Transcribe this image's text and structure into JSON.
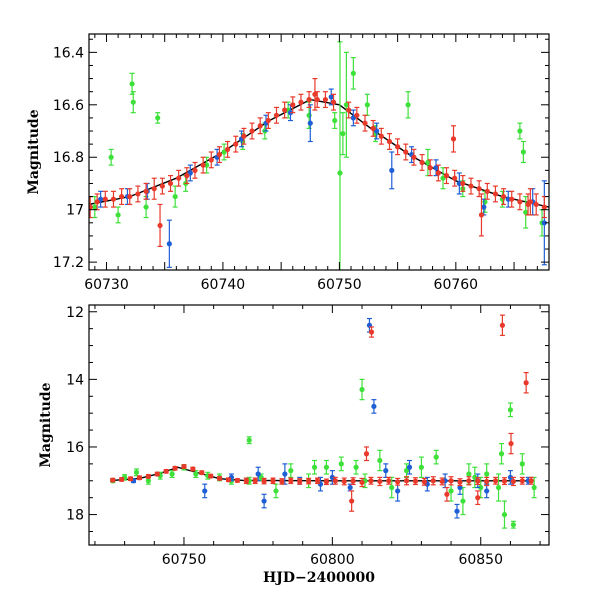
{
  "chart_data": [
    {
      "type": "scatter",
      "panel": "top",
      "xlabel": "",
      "ylabel": "Magnitude",
      "xlim": [
        60728.5,
        60768
      ],
      "ylim": [
        17.23,
        16.33
      ],
      "y_inverted": true,
      "xticks": [
        60730,
        60740,
        60750,
        60760
      ],
      "yticks": [
        16.4,
        16.6,
        16.8,
        17,
        17.2
      ],
      "ytick_labels": [
        "16.4",
        "16.6",
        "16.8",
        "17",
        "17.2"
      ],
      "grid": false,
      "model_curve": {
        "color": "#000000",
        "x": [
          60728.5,
          60732,
          60736,
          60740,
          60744,
          60747.5,
          60750,
          60753,
          60756,
          60760,
          60764,
          60768
        ],
        "y": [
          16.98,
          16.95,
          16.88,
          16.78,
          16.66,
          16.58,
          16.6,
          16.7,
          16.79,
          16.89,
          16.95,
          16.99
        ]
      },
      "series": [
        {
          "color": "#e8392b",
          "x": [
            60728.6,
            60729.2,
            60729.9,
            60730.6,
            60731.3,
            60732,
            60732.7,
            60733.4,
            60734.1,
            60734.8,
            60735.5,
            60736.2,
            60736.9,
            60737.6,
            60738.3,
            60739,
            60739.7,
            60740.4,
            60741.1,
            60741.8,
            60742.5,
            60743.2,
            60743.9,
            60744.6,
            60745.3,
            60746,
            60746.7,
            60747.4,
            60748.1,
            60748.8,
            60749.5,
            60750.8,
            60751.5,
            60752.2,
            60752.9,
            60753.6,
            60754.3,
            60755,
            60755.7,
            60756.4,
            60757.1,
            60757.8,
            60758.5,
            60759.2,
            60759.9,
            60760.6,
            60761.3,
            60762,
            60762.7,
            60763.4,
            60764.1,
            60764.8,
            60765.5,
            60766.2,
            60766.9,
            60767.6,
            60734.6,
            60747.9,
            60759.8,
            60762.2,
            60766.4
          ],
          "y": [
            16.99,
            16.97,
            16.96,
            16.96,
            16.95,
            16.95,
            16.94,
            16.93,
            16.92,
            16.91,
            16.9,
            16.88,
            16.87,
            16.85,
            16.83,
            16.81,
            16.79,
            16.77,
            16.75,
            16.72,
            16.7,
            16.68,
            16.66,
            16.64,
            16.62,
            16.6,
            16.59,
            16.58,
            16.58,
            16.58,
            16.59,
            16.62,
            16.64,
            16.67,
            16.69,
            16.72,
            16.74,
            16.76,
            16.78,
            16.8,
            16.82,
            16.84,
            16.86,
            16.87,
            16.88,
            16.9,
            16.91,
            16.92,
            16.93,
            16.94,
            16.95,
            16.96,
            16.97,
            16.98,
            16.98,
            16.99,
            17.06,
            16.56,
            16.73,
            17.02,
            16.97
          ],
          "yerr": [
            0.04,
            0.03,
            0.03,
            0.03,
            0.03,
            0.03,
            0.03,
            0.03,
            0.04,
            0.03,
            0.03,
            0.03,
            0.03,
            0.03,
            0.03,
            0.03,
            0.03,
            0.03,
            0.03,
            0.03,
            0.03,
            0.03,
            0.03,
            0.03,
            0.03,
            0.03,
            0.03,
            0.03,
            0.03,
            0.03,
            0.03,
            0.03,
            0.03,
            0.03,
            0.03,
            0.03,
            0.03,
            0.03,
            0.03,
            0.03,
            0.03,
            0.03,
            0.03,
            0.03,
            0.03,
            0.03,
            0.03,
            0.03,
            0.03,
            0.03,
            0.03,
            0.03,
            0.03,
            0.04,
            0.04,
            0.04,
            0.08,
            0.06,
            0.05,
            0.08,
            0.05
          ]
        },
        {
          "color": "#1f5fd6",
          "x": [
            60729.5,
            60731.8,
            60733.5,
            60735.4,
            60737.2,
            60739.5,
            60741.6,
            60743.7,
            60745.8,
            60747.5,
            60749.3,
            60751.2,
            60753.2,
            60754.5,
            60756.2,
            60758.3,
            60760.3,
            60762.4,
            60764.5,
            60766.6,
            60767.6
          ],
          "y": [
            16.96,
            16.95,
            16.93,
            17.13,
            16.86,
            16.8,
            16.73,
            16.67,
            16.63,
            16.67,
            16.57,
            16.65,
            16.7,
            16.85,
            16.79,
            16.84,
            16.9,
            16.99,
            16.96,
            16.97,
            17.05
          ],
          "yerr": [
            0.03,
            0.03,
            0.03,
            0.09,
            0.03,
            0.03,
            0.03,
            0.03,
            0.03,
            0.07,
            0.03,
            0.03,
            0.03,
            0.07,
            0.03,
            0.03,
            0.04,
            0.03,
            0.03,
            0.05,
            0.16
          ]
        },
        {
          "color": "#3ee03a",
          "x": [
            60729.0,
            60730.4,
            60731.0,
            60732.2,
            60732.3,
            60733.4,
            60734.4,
            60735.9,
            60736.8,
            60738.6,
            60740.1,
            60741.7,
            60743.6,
            60745.6,
            60747.4,
            60749.6,
            60750.05,
            60750.3,
            60750.6,
            60751.2,
            60752.4,
            60753.1,
            60755.9,
            60757.6,
            60758.9,
            60760.6,
            60762.5,
            60764.0,
            60765.5,
            60765.8,
            60766.0,
            60767.4
          ],
          "y": [
            16.99,
            16.8,
            17.02,
            16.52,
            16.59,
            16.99,
            16.65,
            16.95,
            16.9,
            16.83,
            16.78,
            16.74,
            16.7,
            16.62,
            16.64,
            16.66,
            16.86,
            16.71,
            16.6,
            16.48,
            16.6,
            16.71,
            16.6,
            16.82,
            16.88,
            16.92,
            16.97,
            16.96,
            16.7,
            16.78,
            17.01,
            17.05
          ],
          "yerr": [
            0.04,
            0.03,
            0.03,
            0.04,
            0.04,
            0.04,
            0.02,
            0.04,
            0.03,
            0.03,
            0.03,
            0.03,
            0.03,
            0.03,
            0.05,
            0.03,
            0.5,
            0.08,
            0.2,
            0.06,
            0.04,
            0.03,
            0.05,
            0.05,
            0.04,
            0.03,
            0.04,
            0.03,
            0.03,
            0.04,
            0.06,
            0.05
          ]
        }
      ]
    },
    {
      "type": "scatter",
      "panel": "bottom",
      "xlabel": "HJD−2400000",
      "ylabel": "Magnitude",
      "xlim": [
        60718,
        60873
      ],
      "ylim": [
        18.9,
        11.8
      ],
      "y_inverted": true,
      "xticks": [
        60750,
        60800,
        60850
      ],
      "yticks": [
        12,
        14,
        16,
        18
      ],
      "ytick_labels": [
        "12",
        "14",
        "16",
        "18"
      ],
      "grid": false,
      "model_curve": {
        "color": "#000000",
        "x": [
          60726,
          60735,
          60742,
          60748,
          60755,
          60762,
          60770,
          60800,
          60868
        ],
        "y": [
          16.99,
          16.93,
          16.78,
          16.6,
          16.77,
          16.94,
          16.99,
          17.0,
          17.0
        ]
      },
      "series": [
        {
          "color": "#e8392b",
          "x": [
            60726,
            60729,
            60732,
            60735,
            60738,
            60741,
            60744,
            60747,
            60750,
            60753,
            60756,
            60759,
            60762,
            60765,
            60768,
            60771,
            60774,
            60777,
            60780,
            60783,
            60786,
            60789,
            60792,
            60795,
            60798,
            60801,
            60804,
            60807,
            60810,
            60813,
            60816,
            60819,
            60822,
            60825,
            60828,
            60831,
            60834,
            60837,
            60840,
            60843,
            60846,
            60849,
            60852,
            60855,
            60858,
            60861,
            60864,
            60867,
            60813.2,
            60857.3,
            60865.3,
            60811.5,
            60860.2,
            60806.5,
            60838.6,
            60849.0
          ],
          "y": [
            16.98,
            16.96,
            16.94,
            16.91,
            16.87,
            16.8,
            16.72,
            16.63,
            16.58,
            16.65,
            16.76,
            16.86,
            16.93,
            16.97,
            16.99,
            17.0,
            17.0,
            17.01,
            17.0,
            17.02,
            17.0,
            17.02,
            17.01,
            17.0,
            17.03,
            17.0,
            17.02,
            17.01,
            17.05,
            17.0,
            17.02,
            17.0,
            17.03,
            17.0,
            17.01,
            17.03,
            17.0,
            17.02,
            17.0,
            17.04,
            17.0,
            17.01,
            17.02,
            17.0,
            17.01,
            17.02,
            17.0,
            17.0,
            12.6,
            12.4,
            14.1,
            16.2,
            15.9,
            17.6,
            17.4,
            17.5
          ],
          "yerr": [
            0.05,
            0.05,
            0.05,
            0.05,
            0.05,
            0.05,
            0.05,
            0.05,
            0.05,
            0.05,
            0.05,
            0.05,
            0.05,
            0.05,
            0.05,
            0.08,
            0.08,
            0.08,
            0.08,
            0.08,
            0.08,
            0.08,
            0.08,
            0.08,
            0.08,
            0.1,
            0.1,
            0.1,
            0.12,
            0.1,
            0.12,
            0.1,
            0.1,
            0.12,
            0.1,
            0.1,
            0.12,
            0.1,
            0.12,
            0.1,
            0.12,
            0.1,
            0.12,
            0.1,
            0.1,
            0.12,
            0.1,
            0.1,
            0.15,
            0.3,
            0.3,
            0.2,
            0.3,
            0.3,
            0.2,
            0.2
          ]
        },
        {
          "color": "#1f5fd6",
          "x": [
            60733,
            60757,
            60766,
            60775,
            60777,
            60784,
            60789,
            60796,
            60800,
            60806,
            60812.5,
            60814,
            60818,
            60822,
            60826,
            60832,
            60838,
            60843,
            60849,
            60852,
            60860,
            60866,
            60842
          ],
          "y": [
            17.0,
            17.3,
            16.9,
            16.8,
            17.6,
            16.8,
            17.0,
            17.1,
            16.9,
            17.2,
            12.4,
            14.8,
            16.7,
            17.3,
            16.6,
            17.1,
            17.0,
            17.2,
            17.0,
            17.3,
            16.9,
            17.0,
            17.9
          ],
          "yerr": [
            0.05,
            0.2,
            0.1,
            0.2,
            0.2,
            0.3,
            0.1,
            0.2,
            0.2,
            0.1,
            0.2,
            0.2,
            0.2,
            0.3,
            0.2,
            0.2,
            0.2,
            0.2,
            0.2,
            0.2,
            0.2,
            0.1,
            0.2
          ]
        },
        {
          "color": "#3ee03a",
          "x": [
            60726,
            60730,
            60734,
            60738,
            60742,
            60746,
            60750,
            60754,
            60758,
            60762,
            60766,
            60772,
            60776,
            60781,
            60786,
            60792,
            60798,
            60803,
            60808,
            60811,
            60816,
            60820,
            60825,
            60830,
            60835,
            60840,
            60844,
            60846,
            60848,
            60850,
            60852,
            60856,
            60858,
            60861,
            60864,
            60868,
            60810,
            60857,
            60860,
            60772,
            60794
          ],
          "y": [
            17.0,
            16.9,
            16.75,
            17.0,
            16.85,
            16.8,
            16.6,
            16.8,
            16.85,
            16.9,
            17.0,
            17.0,
            16.9,
            17.3,
            16.7,
            17.0,
            16.6,
            16.5,
            16.6,
            17.0,
            16.4,
            17.2,
            16.7,
            16.6,
            16.3,
            17.3,
            17.6,
            16.8,
            16.9,
            17.2,
            16.8,
            17.2,
            18.0,
            18.3,
            16.5,
            17.2,
            14.3,
            16.2,
            14.9,
            15.8,
            16.6
          ],
          "yerr": [
            0.05,
            0.08,
            0.1,
            0.1,
            0.1,
            0.1,
            0.08,
            0.1,
            0.1,
            0.1,
            0.1,
            0.1,
            0.1,
            0.2,
            0.2,
            0.2,
            0.2,
            0.2,
            0.2,
            0.2,
            0.3,
            0.3,
            0.2,
            0.3,
            0.2,
            0.3,
            0.4,
            0.3,
            0.3,
            0.3,
            0.3,
            0.4,
            0.4,
            0.1,
            0.3,
            0.3,
            0.3,
            0.3,
            0.2,
            0.1,
            0.2
          ]
        }
      ]
    }
  ]
}
